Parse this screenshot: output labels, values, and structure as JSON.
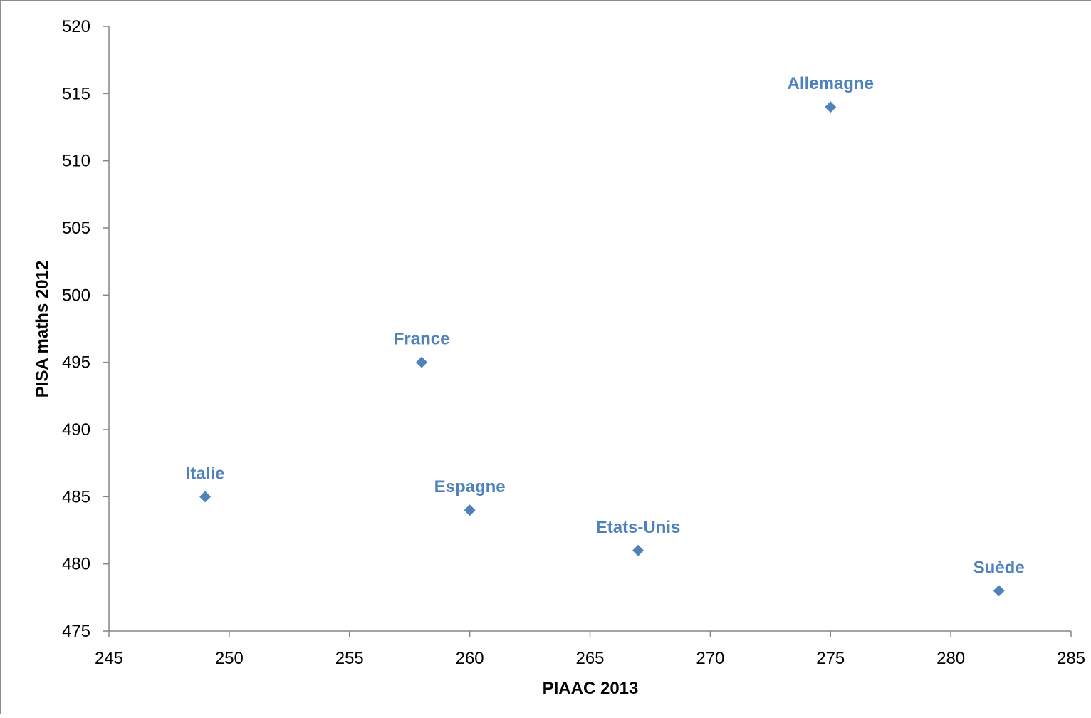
{
  "chart_data": {
    "type": "scatter",
    "title": "",
    "xlabel": "PIAAC 2013",
    "ylabel": "PISA maths 2012",
    "xlim": [
      245,
      285
    ],
    "ylim": [
      475,
      520
    ],
    "x_ticks": [
      245,
      250,
      255,
      260,
      265,
      270,
      275,
      280,
      285
    ],
    "y_ticks": [
      475,
      480,
      485,
      490,
      495,
      500,
      505,
      510,
      515,
      520
    ],
    "grid": false,
    "legend": "none",
    "marker": "diamond",
    "color": "#4f81bd",
    "points": [
      {
        "label": "Italie",
        "x": 249,
        "y": 485
      },
      {
        "label": "France",
        "x": 258,
        "y": 495
      },
      {
        "label": "Espagne",
        "x": 260,
        "y": 484
      },
      {
        "label": "Etats-Unis",
        "x": 267,
        "y": 481
      },
      {
        "label": "Allemagne",
        "x": 275,
        "y": 514
      },
      {
        "label": "Suède",
        "x": 282,
        "y": 478
      }
    ]
  }
}
